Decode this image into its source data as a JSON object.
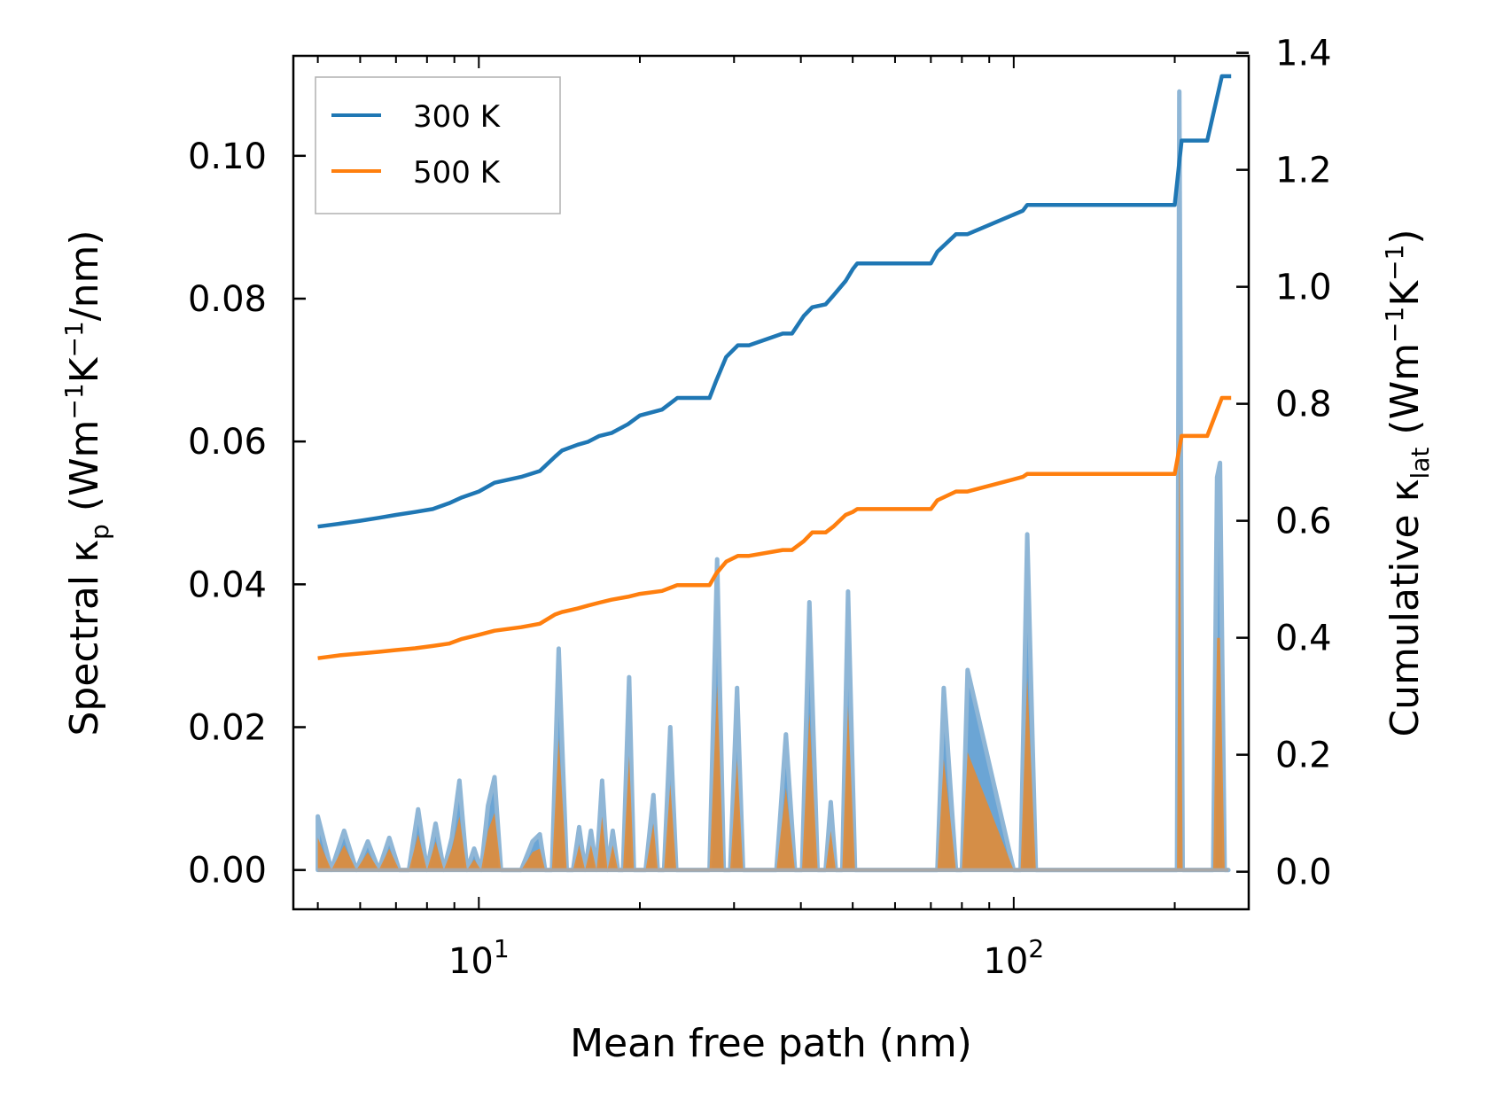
{
  "chart_data": {
    "type": "line",
    "title": "",
    "xlabel": "Mean free path (nm)",
    "ylabel_left": "Spectral κp (Wm⁻¹K⁻¹/nm)",
    "ylabel_right": "Cumulative κlat (Wm⁻¹K⁻¹)",
    "xscale": "log",
    "xlim": [
      4.5,
      275
    ],
    "ylim_left": [
      -0.0055,
      0.114
    ],
    "ylim_right": [
      -0.0642,
      1.3949
    ],
    "x_tick_labels": [
      {
        "value": 10,
        "base": "10",
        "exp": "1"
      },
      {
        "value": 100,
        "base": "10",
        "exp": "2"
      }
    ],
    "y_left_ticks": [
      0.0,
      0.02,
      0.04,
      0.06,
      0.08,
      0.1
    ],
    "y_left_tick_labels": [
      "0.00",
      "0.02",
      "0.04",
      "0.06",
      "0.08",
      "0.10"
    ],
    "y_right_ticks": [
      0.0,
      0.2,
      0.4,
      0.6,
      0.8,
      1.0,
      1.2,
      1.4
    ],
    "y_right_tick_labels": [
      "0.0",
      "0.2",
      "0.4",
      "0.6",
      "0.8",
      "1.0",
      "1.2",
      "1.4"
    ],
    "legend": {
      "position": "upper-left",
      "entries": [
        "300 K",
        "500 K"
      ]
    },
    "colors": {
      "300K": "#1f77b4",
      "500K": "#ff7f0e",
      "fill300": "#5b9bd0",
      "fill500": "#e8892e",
      "spike_outline": "#8fb6d6"
    },
    "cumulative": [
      {
        "name": "300 K",
        "axis": "right",
        "color": "#1f77b4",
        "x": [
          5.0,
          5.5,
          6.0,
          6.5,
          7.0,
          7.6,
          8.2,
          8.8,
          9.3,
          10.0,
          10.7,
          12.0,
          13.0,
          13.9,
          14.3,
          15.3,
          16.0,
          16.8,
          17.7,
          19.0,
          20.0,
          22.0,
          23.5,
          27.0,
          27.8,
          29.0,
          30.5,
          32.0,
          37.0,
          38.5,
          40.5,
          42.0,
          44.5,
          46.0,
          48.5,
          50.0,
          51.0,
          70.0,
          72.0,
          78.0,
          82.0,
          104.0,
          106.0,
          200.0,
          206.0,
          230.0,
          245.0,
          255.0
        ],
        "y": [
          0.59,
          0.595,
          0.6,
          0.605,
          0.61,
          0.615,
          0.62,
          0.63,
          0.64,
          0.65,
          0.665,
          0.675,
          0.685,
          0.71,
          0.72,
          0.73,
          0.735,
          0.745,
          0.75,
          0.765,
          0.78,
          0.79,
          0.81,
          0.81,
          0.84,
          0.88,
          0.9,
          0.9,
          0.92,
          0.92,
          0.95,
          0.965,
          0.97,
          0.985,
          1.01,
          1.03,
          1.04,
          1.04,
          1.06,
          1.09,
          1.09,
          1.13,
          1.14,
          1.14,
          1.25,
          1.25,
          1.36,
          1.36
        ]
      },
      {
        "name": "500 K",
        "axis": "right",
        "color": "#ff7f0e",
        "x": [
          5.0,
          5.5,
          6.0,
          6.5,
          7.0,
          7.6,
          8.2,
          8.8,
          9.3,
          10.0,
          10.7,
          12.0,
          13.0,
          13.9,
          14.3,
          15.3,
          16.0,
          16.8,
          17.7,
          19.0,
          20.0,
          22.0,
          23.5,
          27.0,
          27.8,
          29.0,
          30.5,
          32.0,
          37.0,
          38.5,
          40.5,
          42.0,
          44.5,
          46.0,
          48.5,
          50.0,
          51.0,
          70.0,
          72.0,
          78.0,
          82.0,
          104.0,
          106.0,
          200.0,
          206.0,
          230.0,
          245.0,
          255.0
        ],
        "y": [
          0.365,
          0.37,
          0.373,
          0.376,
          0.379,
          0.382,
          0.386,
          0.39,
          0.398,
          0.405,
          0.412,
          0.418,
          0.424,
          0.44,
          0.444,
          0.45,
          0.455,
          0.46,
          0.465,
          0.47,
          0.475,
          0.48,
          0.49,
          0.49,
          0.51,
          0.53,
          0.54,
          0.54,
          0.55,
          0.55,
          0.565,
          0.58,
          0.58,
          0.59,
          0.61,
          0.615,
          0.62,
          0.62,
          0.635,
          0.65,
          0.65,
          0.675,
          0.68,
          0.68,
          0.745,
          0.745,
          0.81,
          0.81
        ]
      }
    ],
    "spectral": [
      {
        "name": "300 K",
        "axis": "left",
        "color": "#1f77b4",
        "x": [
          5.0,
          5.3,
          5.6,
          5.9,
          6.2,
          6.5,
          6.8,
          7.1,
          7.4,
          7.7,
          8.0,
          8.3,
          8.6,
          8.9,
          9.2,
          9.5,
          9.8,
          10.1,
          10.4,
          10.7,
          11.0,
          12.0,
          12.6,
          13.0,
          13.3,
          13.7,
          14.1,
          14.6,
          15.0,
          15.4,
          15.8,
          16.2,
          16.6,
          17.0,
          17.4,
          17.8,
          18.2,
          18.6,
          19.1,
          19.5,
          20.5,
          21.2,
          21.6,
          22.2,
          22.8,
          23.4,
          24.1,
          25.0,
          27.0,
          27.9,
          28.7,
          29.5,
          30.4,
          31.2,
          32.0,
          36.0,
          37.5,
          39.0,
          40.2,
          41.5,
          43.0,
          44.5,
          45.5,
          46.5,
          47.8,
          49.0,
          50.5,
          52.0,
          70.0,
          72.0,
          74.0,
          78.0,
          80.0,
          82.0,
          100.0,
          103.0,
          106.0,
          110.0,
          195.0,
          200.0,
          202.0,
          204.0,
          207.0,
          230.0,
          236.0,
          240.0,
          243.0,
          248.0,
          252.0
        ],
        "y": [
          0.0075,
          0.0,
          0.0055,
          0.0,
          0.004,
          0.0,
          0.0045,
          0.0,
          0.0,
          0.0085,
          0.0,
          0.0065,
          0.0,
          0.0045,
          0.0125,
          0.0,
          0.003,
          0.0,
          0.009,
          0.013,
          0.0,
          0.0,
          0.004,
          0.005,
          0.0,
          0.0,
          0.031,
          0.0,
          0.0,
          0.006,
          0.0,
          0.0055,
          0.0,
          0.0125,
          0.0,
          0.0055,
          0.0,
          0.0,
          0.027,
          0.0,
          0.0,
          0.0105,
          0.0,
          0.0,
          0.02,
          0.0,
          0.0,
          0.0,
          0.0,
          0.0435,
          0.0,
          0.0,
          0.0255,
          0.0,
          0.0,
          0.0,
          0.019,
          0.0,
          0.0,
          0.0375,
          0.0,
          0.0,
          0.0095,
          0.0,
          0.0,
          0.039,
          0.0,
          0.0,
          0.0,
          0.0,
          0.0255,
          0.0,
          0.0,
          0.028,
          0.0,
          0.0,
          0.047,
          0.0,
          0.0,
          0.0,
          0.0,
          0.109,
          0.0,
          0.0,
          0.0,
          0.055,
          0.057,
          0.0,
          0.0
        ]
      },
      {
        "name": "500 K",
        "axis": "left",
        "color": "#ff7f0e",
        "x": [
          5.0,
          5.3,
          5.6,
          5.9,
          6.2,
          6.5,
          6.8,
          7.1,
          7.4,
          7.7,
          8.0,
          8.3,
          8.6,
          8.9,
          9.2,
          9.5,
          9.8,
          10.1,
          10.4,
          10.7,
          11.0,
          12.0,
          12.6,
          13.0,
          13.3,
          13.7,
          14.1,
          14.6,
          15.0,
          15.4,
          15.8,
          16.2,
          16.6,
          17.0,
          17.4,
          17.8,
          18.2,
          18.6,
          19.1,
          19.5,
          20.5,
          21.2,
          21.6,
          22.2,
          22.8,
          23.4,
          24.1,
          25.0,
          27.0,
          27.9,
          28.7,
          29.5,
          30.4,
          31.2,
          32.0,
          36.0,
          37.5,
          39.0,
          40.2,
          41.5,
          43.0,
          44.5,
          45.5,
          46.5,
          47.8,
          49.0,
          50.5,
          52.0,
          70.0,
          72.0,
          74.0,
          78.0,
          80.0,
          82.0,
          100.0,
          103.0,
          106.0,
          110.0,
          195.0,
          200.0,
          202.0,
          204.0,
          207.0,
          230.0,
          236.0,
          240.0,
          243.0,
          248.0,
          252.0
        ],
        "y": [
          0.0045,
          0.0,
          0.0035,
          0.0,
          0.0025,
          0.0,
          0.003,
          0.0,
          0.0,
          0.005,
          0.0,
          0.004,
          0.0,
          0.003,
          0.0075,
          0.0,
          0.0015,
          0.0,
          0.0055,
          0.008,
          0.0,
          0.0,
          0.0025,
          0.003,
          0.0,
          0.0,
          0.0185,
          0.0,
          0.0,
          0.0035,
          0.0,
          0.0035,
          0.0,
          0.0075,
          0.0,
          0.0035,
          0.0,
          0.0,
          0.016,
          0.0,
          0.0,
          0.0065,
          0.0,
          0.0,
          0.012,
          0.0,
          0.0,
          0.0,
          0.0,
          0.026,
          0.0,
          0.0,
          0.0155,
          0.0,
          0.0,
          0.0,
          0.0115,
          0.0,
          0.0,
          0.022,
          0.0,
          0.0,
          0.0055,
          0.0,
          0.0,
          0.023,
          0.0,
          0.0,
          0.0,
          0.0,
          0.0155,
          0.0,
          0.0,
          0.0165,
          0.0,
          0.0,
          0.027,
          0.0,
          0.0,
          0.0,
          0.0,
          0.063,
          0.0,
          0.0,
          0.0,
          0.0325,
          0.0325,
          0.0,
          0.0
        ]
      }
    ]
  }
}
